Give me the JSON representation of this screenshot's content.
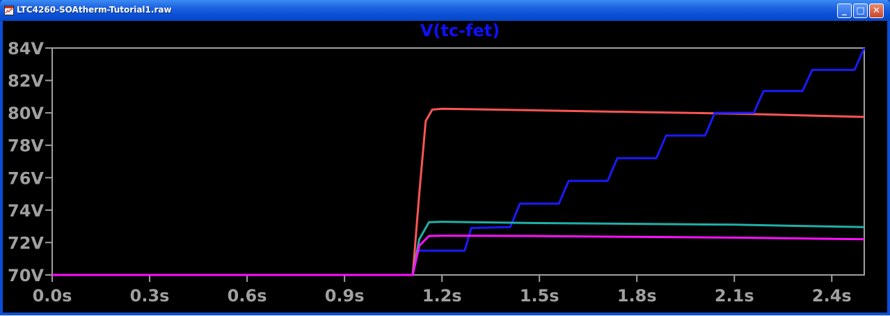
{
  "window": {
    "title": "LTC4260-SOAtherm-Tutorial1.raw",
    "buttons": {
      "minimize": "_",
      "maximize": "□",
      "close": "✕"
    }
  },
  "colors": {
    "background": "#000000",
    "axis": "#a0a0a0",
    "title": "#1010ff",
    "series": [
      "#ff5555",
      "#1a1aff",
      "#20b0a8",
      "#ff10ff"
    ]
  },
  "chart_data": {
    "type": "line",
    "title": "V(tc-fet)",
    "xlabel": "",
    "ylabel": "",
    "xlim": [
      0,
      2.5
    ],
    "ylim": [
      70,
      84
    ],
    "grid": false,
    "x_ticks": [
      "0.0s",
      "0.3s",
      "0.6s",
      "0.9s",
      "1.2s",
      "1.5s",
      "1.8s",
      "2.1s",
      "2.4s"
    ],
    "x_tick_values": [
      0,
      0.3,
      0.6,
      0.9,
      1.2,
      1.5,
      1.8,
      2.1,
      2.4
    ],
    "y_ticks": [
      "70V",
      "72V",
      "74V",
      "76V",
      "78V",
      "80V",
      "82V",
      "84V"
    ],
    "y_tick_values": [
      70,
      72,
      74,
      76,
      78,
      80,
      82,
      84
    ],
    "series": [
      {
        "color": "#ff5555",
        "x": [
          0,
          1.11,
          1.13,
          1.15,
          1.17,
          1.2,
          1.5,
          1.8,
          2.1,
          2.5
        ],
        "y": [
          70,
          70,
          75,
          79.5,
          80.2,
          80.25,
          80.15,
          80.05,
          79.95,
          79.75
        ]
      },
      {
        "color": "#1a1aff",
        "x": [
          0,
          1.11,
          1.125,
          1.27,
          1.29,
          1.41,
          1.44,
          1.56,
          1.59,
          1.71,
          1.74,
          1.86,
          1.89,
          2.01,
          2.04,
          2.16,
          2.19,
          2.31,
          2.34,
          2.47,
          2.5
        ],
        "y": [
          70,
          70,
          71.5,
          71.5,
          72.9,
          72.95,
          74.4,
          74.4,
          75.8,
          75.8,
          77.2,
          77.2,
          78.6,
          78.6,
          80,
          80,
          81.35,
          81.35,
          82.65,
          82.65,
          84
        ]
      },
      {
        "color": "#20b0a8",
        "x": [
          0,
          1.11,
          1.13,
          1.16,
          1.2,
          1.5,
          1.8,
          2.1,
          2.5
        ],
        "y": [
          70,
          70,
          72.2,
          73.25,
          73.28,
          73.2,
          73.15,
          73.1,
          72.95
        ]
      },
      {
        "color": "#ff10ff",
        "x": [
          0,
          1.11,
          1.13,
          1.16,
          1.2,
          1.5,
          1.8,
          2.1,
          2.5
        ],
        "y": [
          70,
          70,
          71.8,
          72.4,
          72.42,
          72.4,
          72.35,
          72.3,
          72.2
        ]
      }
    ]
  }
}
